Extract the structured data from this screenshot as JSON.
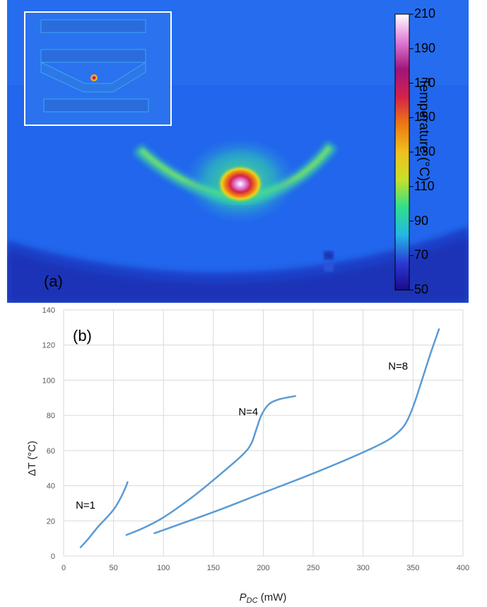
{
  "panel_a": {
    "label": "(a)",
    "colorbar": {
      "title": "Temperature (°C)",
      "ticks": [
        "210",
        "190",
        "170",
        "150",
        "130",
        "110",
        "90",
        "70",
        "50"
      ],
      "min": 50,
      "max": 210,
      "colors": [
        "#1a0a8c",
        "#2a3bd6",
        "#23b7e6",
        "#2ee08a",
        "#c8e02a",
        "#f0c020",
        "#ec7a12",
        "#d4224a",
        "#a0147a",
        "#e07ad8",
        "#ffffff"
      ]
    }
  },
  "chart_data": {
    "type": "line",
    "panel_label": "(b)",
    "xlabel_main": "P",
    "xlabel_sub": "DC",
    "xlabel_unit": " (mW)",
    "ylabel": "ΔT (°C)",
    "xlim": [
      0,
      400
    ],
    "ylim": [
      0,
      140
    ],
    "xticks": [
      0,
      50,
      100,
      150,
      200,
      250,
      300,
      350,
      400
    ],
    "yticks": [
      0,
      20,
      40,
      60,
      80,
      100,
      120,
      140
    ],
    "grid": true,
    "line_color": "#5b9bd5",
    "series": [
      {
        "name": "N=1",
        "label_pos": [
          22,
          27
        ],
        "x": [
          17,
          25,
          35,
          45,
          52,
          58,
          62,
          64
        ],
        "y": [
          5,
          10,
          17,
          23,
          28,
          34,
          39,
          42
        ]
      },
      {
        "name": "N=4",
        "label_pos": [
          185,
          80
        ],
        "x": [
          63,
          80,
          100,
          130,
          160,
          180,
          188,
          193,
          198,
          205,
          215,
          232
        ],
        "y": [
          12,
          16,
          22,
          34,
          48,
          58,
          64,
          72,
          80,
          86,
          89,
          91
        ]
      },
      {
        "name": "N=8",
        "label_pos": [
          335,
          106
        ],
        "x": [
          91,
          150,
          200,
          250,
          300,
          325,
          338,
          345,
          352,
          360,
          368,
          376
        ],
        "y": [
          13,
          25,
          36,
          47,
          59,
          66,
          72,
          78,
          88,
          102,
          116,
          129
        ]
      }
    ]
  }
}
